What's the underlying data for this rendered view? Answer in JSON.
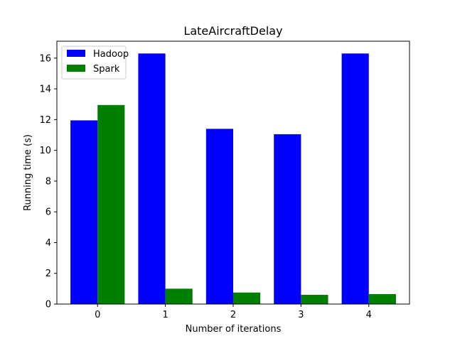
{
  "chart_data": {
    "type": "bar",
    "title": "LateAircraftDelay",
    "xlabel": "Number of iterations",
    "ylabel": "Running time (s)",
    "categories": [
      "0",
      "1",
      "2",
      "3",
      "4"
    ],
    "series": [
      {
        "name": "Hadoop",
        "color": "#0000ff",
        "values": [
          11.95,
          16.3,
          11.4,
          11.05,
          16.3
        ]
      },
      {
        "name": "Spark",
        "color": "#008000",
        "values": [
          12.95,
          1.0,
          0.75,
          0.6,
          0.65
        ]
      }
    ],
    "ylim": [
      0,
      17.1
    ],
    "yticks": [
      0,
      2,
      4,
      6,
      8,
      10,
      12,
      14,
      16
    ],
    "grid": false,
    "legend_position": "top-left"
  }
}
